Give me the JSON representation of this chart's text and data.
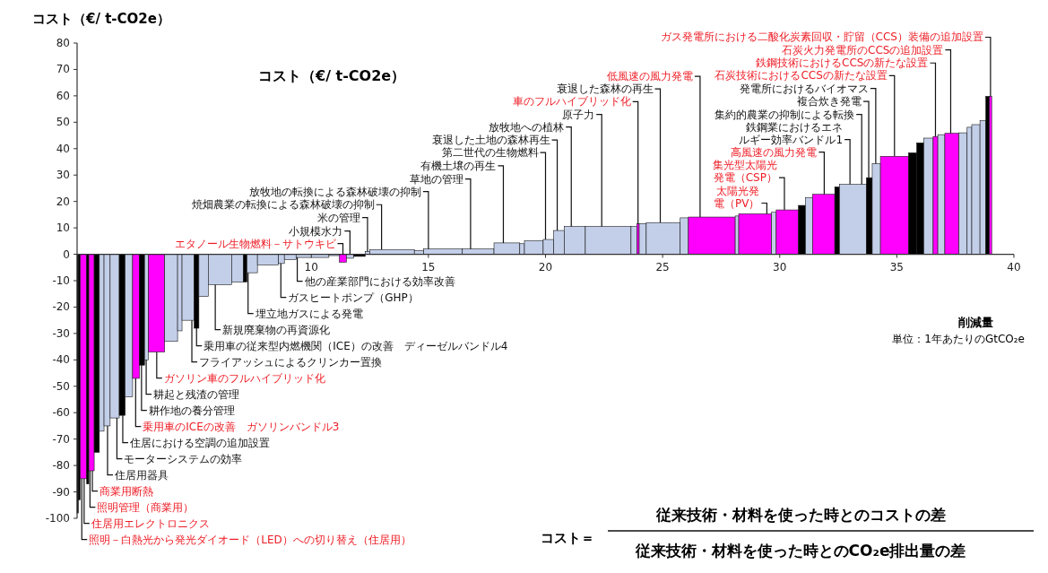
{
  "chart_data": {
    "type": "histogram",
    "title": "コスト（€/ t-CO2e）",
    "ylabel": "コスト（€/ t-CO2e）",
    "xlabel": "削減量",
    "bins": [
      0,
      0.05,
      0.13,
      0.41,
      0.5,
      0.73,
      0.95,
      1.15,
      1.41,
      1.8,
      2.05,
      2.37,
      2.66,
      2.88,
      3.05,
      3.74,
      4.29,
      4.48,
      5.0,
      5.2,
      5.6,
      6.6,
      7.1,
      7.25,
      7.7,
      8.6,
      8.85,
      9.35,
      10.75,
      11.2,
      11.5,
      11.8,
      12.3,
      12.5,
      14.4,
      14.8,
      16.45,
      17.8,
      18.9,
      19.1,
      19.9,
      20.35,
      20.8,
      21.7,
      23.65,
      23.9,
      24.0,
      24.3,
      25.75,
      26.1,
      28.1,
      28.25,
      29.65,
      29.85,
      30.8,
      31.1,
      31.4,
      32.35,
      32.55,
      33.7,
      33.95,
      34.3,
      35.5,
      35.85,
      36.15,
      36.55,
      36.75,
      37.05,
      37.65,
      38.0,
      38.2,
      38.55,
      38.8,
      38.95,
      39.05
    ],
    "values": [
      -98,
      -93,
      -85,
      -87,
      -82,
      -75,
      -67,
      -65,
      -62,
      -61,
      -54,
      -47,
      -42,
      -40,
      -37,
      -33,
      -29,
      -25,
      -28,
      -16,
      -11.5,
      -10.5,
      -10.5,
      -7,
      -4,
      -3.5,
      -2,
      -1.2,
      -0.5,
      -3,
      -1.5,
      -0.8,
      1,
      1.8,
      1.4,
      2,
      2,
      4.3,
      4,
      5.2,
      5.6,
      9,
      10.5,
      10.5,
      10.5,
      11.6,
      11.6,
      12,
      13.8,
      14.1,
      14.5,
      15.3,
      15.9,
      16.8,
      18.5,
      21.5,
      22.7,
      25.5,
      26.5,
      29,
      34.3,
      37.1,
      38.4,
      42.2,
      44,
      44.6,
      45.3,
      45.8,
      46,
      48.1,
      49.1,
      50.6,
      59.8,
      59.8
    ],
    "colors": [
      "#000000",
      "#000000",
      "#ff00ff",
      "#000000",
      "#ff00ff",
      "#000000",
      "#c3cfe9",
      "#c3cfe9",
      "#c3cfe9",
      "#000000",
      "#c3cfe9",
      "#ff00ff",
      "#000000",
      "#c3cfe9",
      "#ff00ff",
      "#c3cfe9",
      "#c3cfe9",
      "#c3cfe9",
      "#000000",
      "#c3cfe9",
      "#c3cfe9",
      "#c3cfe9",
      "#000000",
      "#c3cfe9",
      "#c3cfe9",
      "#c3cfe9",
      "#c3cfe9",
      "#c3cfe9",
      "#c3cfe9",
      "#ff00ff",
      "#c3cfe9",
      "#000000",
      "#c3cfe9",
      "#c3cfe9",
      "#c3cfe9",
      "#c3cfe9",
      "#c3cfe9",
      "#c3cfe9",
      "#c3cfe9",
      "#c3cfe9",
      "#c3cfe9",
      "#c3cfe9",
      "#c3cfe9",
      "#c3cfe9",
      "#c3cfe9",
      "#ff00ff",
      "#c3cfe9",
      "#c3cfe9",
      "#c3cfe9",
      "#ff00ff",
      "#c3cfe9",
      "#ff00ff",
      "#c3cfe9",
      "#ff00ff",
      "#000000",
      "#c3cfe9",
      "#ff00ff",
      "#000000",
      "#c3cfe9",
      "#000000",
      "#c3cfe9",
      "#ff00ff",
      "#000000",
      "#000000",
      "#c3cfe9",
      "#ff00ff",
      "#c3cfe9",
      "#ff00ff",
      "#c3cfe9",
      "#c3cfe9",
      "#c3cfe9",
      "#c3cfe9",
      "#000000",
      "#ff00ff"
    ],
    "xlim": [
      0,
      40
    ],
    "xticks": [
      10,
      15,
      20,
      25,
      30,
      35,
      40
    ],
    "ylim": [
      -100,
      80
    ],
    "yticks": [
      -100,
      -90,
      -80,
      -70,
      -60,
      -50,
      -40,
      -30,
      -20,
      -10,
      0,
      10,
      20,
      30,
      40,
      50,
      60,
      70,
      80
    ],
    "annotations": [
      {
        "text": "照明－白熱光から発光ダイオード（LED）への切り替え（住居用）",
        "x": 0.2,
        "y": -85
      },
      {
        "text": "住居用エレクトロニクス",
        "x": 0.3,
        "y": -85
      },
      {
        "text": "照明管理（商業用）",
        "x": 0.55,
        "y": -82
      },
      {
        "text": "商業用断熱",
        "x": 0.65,
        "y": -82
      },
      {
        "text": "住居用器具",
        "x": 1.3,
        "y": -65
      },
      {
        "text": "モーターシステムの効率",
        "x": 1.7,
        "y": -62
      },
      {
        "text": "住居における空調の追加設置",
        "x": 1.95,
        "y": -61
      },
      {
        "text": "乗用車のICEの改善　ガソリンバンドル3",
        "x": 2.5,
        "y": -47
      },
      {
        "text": "耕作地の養分管理",
        "x": 2.75,
        "y": -42
      },
      {
        "text": "耕起と残渣の管理",
        "x": 2.95,
        "y": -40
      },
      {
        "text": "ガソリン車のフルハイブリッド化",
        "x": 3.4,
        "y": -37
      },
      {
        "text": "フライアッシュによるクリンカー置換",
        "x": 4.9,
        "y": -25
      },
      {
        "text": "乗用車の従来型内燃機関（ICE）の改善　ディーゼルバンドル4",
        "x": 5.1,
        "y": -28
      },
      {
        "text": "新規廃棄物の再資源化",
        "x": 5.9,
        "y": -11.5
      },
      {
        "text": "埋立地ガスによる発電",
        "x": 7.3,
        "y": -7
      },
      {
        "text": "ガスヒートポンプ（GHP）",
        "x": 8.7,
        "y": -3.5
      },
      {
        "text": "他の産業部門における効率改善",
        "x": 9.4,
        "y": -1.2
      },
      {
        "text": "エタノール生物燃料－サトウキビ",
        "x": 11.35,
        "y": -3
      },
      {
        "text": "小規模水力",
        "x": 11.65,
        "y": -1.5
      },
      {
        "text": "米の管理",
        "x": 12.4,
        "y": 1
      },
      {
        "text": "焼畑農業の転換による森林破壊の抑制",
        "x": 13.0,
        "y": 1.8
      },
      {
        "text": "放牧地の転換による森林破壊の抑制",
        "x": 15.0,
        "y": 2
      },
      {
        "text": "草地の管理",
        "x": 16.8,
        "y": 2
      },
      {
        "text": "有機土壌の再生",
        "x": 18.2,
        "y": 4.3
      },
      {
        "text": "第二世代の生物燃料",
        "x": 20.0,
        "y": 5.6
      },
      {
        "text": "衰退した土地の森林再生",
        "x": 20.5,
        "y": 9
      },
      {
        "text": "放牧地への植林",
        "x": 21.1,
        "y": 10.5
      },
      {
        "text": "原子力",
        "x": 22.4,
        "y": 10.5
      },
      {
        "text": "車のフルハイブリッド化",
        "x": 23.95,
        "y": 11.6
      },
      {
        "text": "衰退した森林の再生",
        "x": 24.9,
        "y": 12
      },
      {
        "text": "低風速の風力発電",
        "x": 26.6,
        "y": 14.1
      },
      {
        "text": "太陽光発電（PV）",
        "x": 29.45,
        "y": 15.3
      },
      {
        "text": "集光型太陽光発電（CSP）",
        "x": 30.2,
        "y": 16.8
      },
      {
        "text": "高風速の風力発電",
        "x": 31.9,
        "y": 22.7
      },
      {
        "text": "鉄鋼業におけるエネルギー効率バンドル1",
        "x": 33.0,
        "y": 26.5
      },
      {
        "text": "集約的農業の抑制による転換",
        "x": 33.5,
        "y": 26.5
      },
      {
        "text": "複合炊き発電",
        "x": 33.8,
        "y": 29
      },
      {
        "text": "発電所におけるバイオマス",
        "x": 34.1,
        "y": 34.3
      },
      {
        "text": "石炭技術におけるCCSの新たな設置",
        "x": 34.9,
        "y": 37.1
      },
      {
        "text": "鉄鋼技術におけるCCSの新たな設置",
        "x": 36.65,
        "y": 44.6
      },
      {
        "text": "石炭火力発電所のCCSの追加設置",
        "x": 37.3,
        "y": 45.8
      },
      {
        "text": "ガス発電所における二酸化炭素回収・貯留（CCS）装備の追加設置",
        "x": 39.0,
        "y": 59.8
      },
      "単位：1年あたりのGtCO₂e",
      "コスト＝",
      "従来技術・材料を使った時とのコストの差",
      "従来技術・材料を使った時とのCO₂e排出量の差"
    ]
  }
}
